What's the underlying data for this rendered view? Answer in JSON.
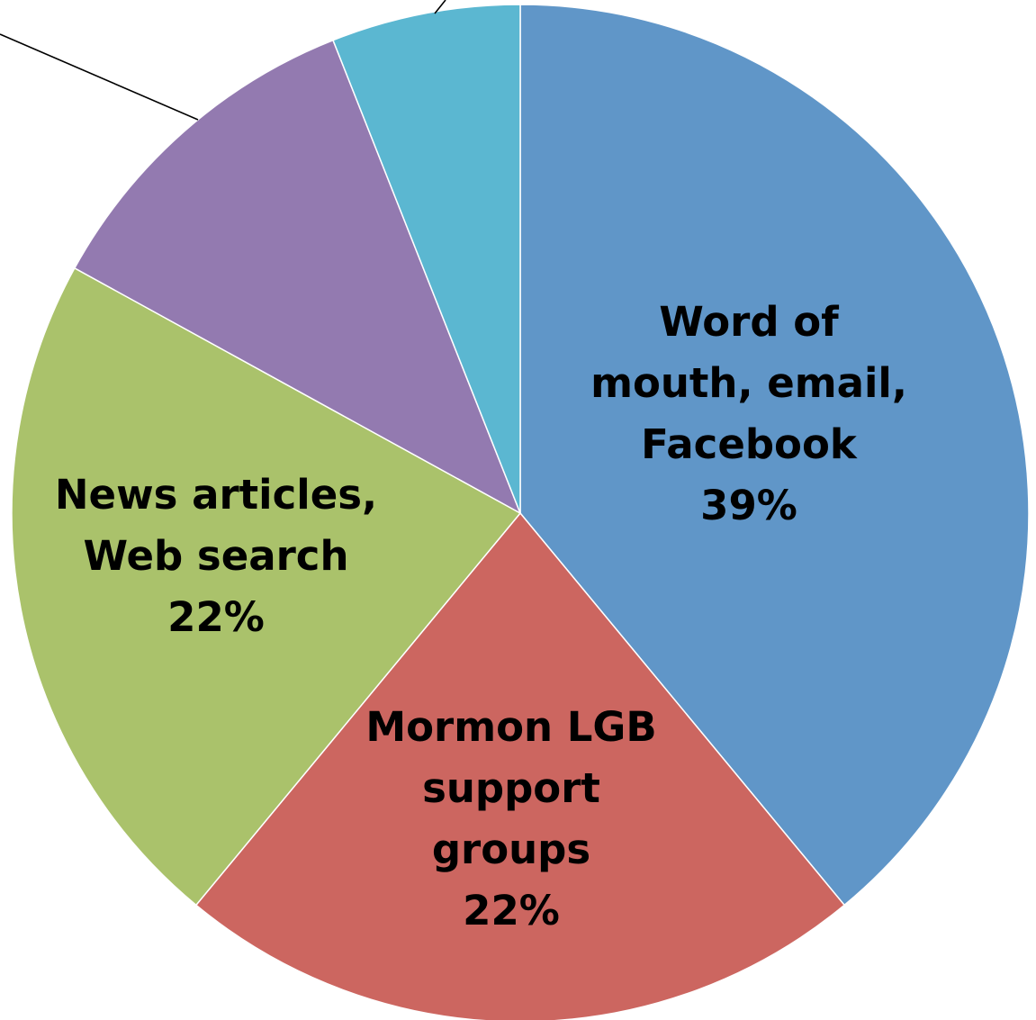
{
  "chart_data": {
    "type": "pie",
    "slices": [
      {
        "label": "Word of mouth, email, Facebook",
        "label_lines": [
          "Word of",
          "mouth, email,",
          "Facebook"
        ],
        "value": 39,
        "value_label": "39%",
        "color": "#6096c8",
        "labeled": true
      },
      {
        "label": "Mormon LGB support groups",
        "label_lines": [
          "Mormon LGB",
          "support",
          "groups"
        ],
        "value": 22,
        "value_label": "22%",
        "color": "#cc6660",
        "labeled": true
      },
      {
        "label": "News articles, Web search",
        "label_lines": [
          "News articles,",
          "Web search"
        ],
        "value": 22,
        "value_label": "22%",
        "color": "#aac26b",
        "labeled": true
      },
      {
        "label": "",
        "label_lines": [],
        "value": 11,
        "value_label": "",
        "color": "#937ab0",
        "labeled": false
      },
      {
        "label": "",
        "label_lines": [],
        "value": 6,
        "value_label": "",
        "color": "#5bb7d1",
        "labeled": false
      }
    ],
    "start_angle_deg": 0,
    "direction": "clockwise",
    "legend": "none"
  }
}
